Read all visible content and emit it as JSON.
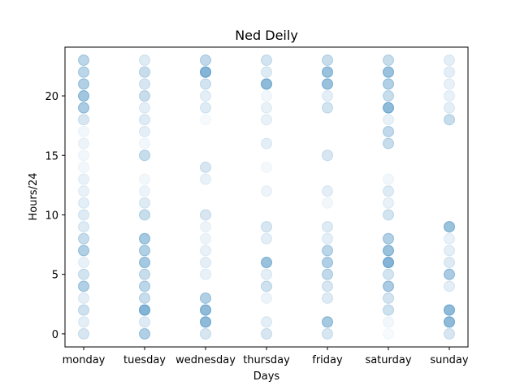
{
  "chart_data": {
    "type": "scatter",
    "title": "Ned Deily",
    "xlabel": "Days",
    "ylabel": "Hours/24",
    "categories": [
      "monday",
      "tuesday",
      "wednesday",
      "thursday",
      "friday",
      "saturday",
      "sunday"
    ],
    "yticks": [
      0,
      5,
      10,
      15,
      20
    ],
    "ylim": [
      -1.1,
      24.1
    ],
    "grid": false,
    "marker_color": "#1f77b4",
    "points": [
      {
        "day": "monday",
        "hour": 0,
        "alpha": 0.18
      },
      {
        "day": "monday",
        "hour": 1,
        "alpha": 0.12
      },
      {
        "day": "monday",
        "hour": 2,
        "alpha": 0.22
      },
      {
        "day": "monday",
        "hour": 3,
        "alpha": 0.12
      },
      {
        "day": "monday",
        "hour": 4,
        "alpha": 0.35
      },
      {
        "day": "monday",
        "hour": 5,
        "alpha": 0.2
      },
      {
        "day": "monday",
        "hour": 6,
        "alpha": 0.1
      },
      {
        "day": "monday",
        "hour": 7,
        "alpha": 0.35
      },
      {
        "day": "monday",
        "hour": 8,
        "alpha": 0.25
      },
      {
        "day": "monday",
        "hour": 9,
        "alpha": 0.15
      },
      {
        "day": "monday",
        "hour": 10,
        "alpha": 0.15
      },
      {
        "day": "monday",
        "hour": 11,
        "alpha": 0.12
      },
      {
        "day": "monday",
        "hour": 12,
        "alpha": 0.1
      },
      {
        "day": "monday",
        "hour": 13,
        "alpha": 0.1
      },
      {
        "day": "monday",
        "hour": 14,
        "alpha": 0.06
      },
      {
        "day": "monday",
        "hour": 15,
        "alpha": 0.06
      },
      {
        "day": "monday",
        "hour": 16,
        "alpha": 0.08
      },
      {
        "day": "monday",
        "hour": 17,
        "alpha": 0.06
      },
      {
        "day": "monday",
        "hour": 18,
        "alpha": 0.18
      },
      {
        "day": "monday",
        "hour": 19,
        "alpha": 0.38
      },
      {
        "day": "monday",
        "hour": 20,
        "alpha": 0.42
      },
      {
        "day": "monday",
        "hour": 21,
        "alpha": 0.35
      },
      {
        "day": "monday",
        "hour": 22,
        "alpha": 0.3
      },
      {
        "day": "monday",
        "hour": 23,
        "alpha": 0.3
      },
      {
        "day": "tuesday",
        "hour": 0,
        "alpha": 0.35
      },
      {
        "day": "tuesday",
        "hour": 1,
        "alpha": 0.15
      },
      {
        "day": "tuesday",
        "hour": 2,
        "alpha": 0.55
      },
      {
        "day": "tuesday",
        "hour": 3,
        "alpha": 0.25
      },
      {
        "day": "tuesday",
        "hour": 4,
        "alpha": 0.3
      },
      {
        "day": "tuesday",
        "hour": 5,
        "alpha": 0.25
      },
      {
        "day": "tuesday",
        "hour": 6,
        "alpha": 0.4
      },
      {
        "day": "tuesday",
        "hour": 7,
        "alpha": 0.35
      },
      {
        "day": "tuesday",
        "hour": 8,
        "alpha": 0.4
      },
      {
        "day": "tuesday",
        "hour": 10,
        "alpha": 0.25
      },
      {
        "day": "tuesday",
        "hour": 11,
        "alpha": 0.15
      },
      {
        "day": "tuesday",
        "hour": 12,
        "alpha": 0.08
      },
      {
        "day": "tuesday",
        "hour": 13,
        "alpha": 0.06
      },
      {
        "day": "tuesday",
        "hour": 15,
        "alpha": 0.25
      },
      {
        "day": "tuesday",
        "hour": 16,
        "alpha": 0.06
      },
      {
        "day": "tuesday",
        "hour": 17,
        "alpha": 0.12
      },
      {
        "day": "tuesday",
        "hour": 18,
        "alpha": 0.15
      },
      {
        "day": "tuesday",
        "hour": 19,
        "alpha": 0.12
      },
      {
        "day": "tuesday",
        "hour": 20,
        "alpha": 0.25
      },
      {
        "day": "tuesday",
        "hour": 21,
        "alpha": 0.18
      },
      {
        "day": "tuesday",
        "hour": 22,
        "alpha": 0.25
      },
      {
        "day": "tuesday",
        "hour": 23,
        "alpha": 0.15
      },
      {
        "day": "wednesday",
        "hour": 0,
        "alpha": 0.18
      },
      {
        "day": "wednesday",
        "hour": 1,
        "alpha": 0.5
      },
      {
        "day": "wednesday",
        "hour": 2,
        "alpha": 0.5
      },
      {
        "day": "wednesday",
        "hour": 3,
        "alpha": 0.35
      },
      {
        "day": "wednesday",
        "hour": 5,
        "alpha": 0.1
      },
      {
        "day": "wednesday",
        "hour": 6,
        "alpha": 0.12
      },
      {
        "day": "wednesday",
        "hour": 7,
        "alpha": 0.1
      },
      {
        "day": "wednesday",
        "hour": 8,
        "alpha": 0.08
      },
      {
        "day": "wednesday",
        "hour": 9,
        "alpha": 0.08
      },
      {
        "day": "wednesday",
        "hour": 10,
        "alpha": 0.18
      },
      {
        "day": "wednesday",
        "hour": 13,
        "alpha": 0.1
      },
      {
        "day": "wednesday",
        "hour": 14,
        "alpha": 0.18
      },
      {
        "day": "wednesday",
        "hour": 18,
        "alpha": 0.04
      },
      {
        "day": "wednesday",
        "hour": 19,
        "alpha": 0.15
      },
      {
        "day": "wednesday",
        "hour": 20,
        "alpha": 0.12
      },
      {
        "day": "wednesday",
        "hour": 21,
        "alpha": 0.2
      },
      {
        "day": "wednesday",
        "hour": 22,
        "alpha": 0.55
      },
      {
        "day": "wednesday",
        "hour": 23,
        "alpha": 0.28
      },
      {
        "day": "thursday",
        "hour": 0,
        "alpha": 0.18
      },
      {
        "day": "thursday",
        "hour": 1,
        "alpha": 0.12
      },
      {
        "day": "thursday",
        "hour": 3,
        "alpha": 0.08
      },
      {
        "day": "thursday",
        "hour": 4,
        "alpha": 0.22
      },
      {
        "day": "thursday",
        "hour": 5,
        "alpha": 0.12
      },
      {
        "day": "thursday",
        "hour": 6,
        "alpha": 0.45
      },
      {
        "day": "thursday",
        "hour": 8,
        "alpha": 0.12
      },
      {
        "day": "thursday",
        "hour": 9,
        "alpha": 0.18
      },
      {
        "day": "thursday",
        "hour": 12,
        "alpha": 0.08
      },
      {
        "day": "thursday",
        "hour": 14,
        "alpha": 0.05
      },
      {
        "day": "thursday",
        "hour": 16,
        "alpha": 0.12
      },
      {
        "day": "thursday",
        "hour": 18,
        "alpha": 0.1
      },
      {
        "day": "thursday",
        "hour": 19,
        "alpha": 0.1
      },
      {
        "day": "thursday",
        "hour": 20,
        "alpha": 0.06
      },
      {
        "day": "thursday",
        "hour": 21,
        "alpha": 0.5
      },
      {
        "day": "thursday",
        "hour": 22,
        "alpha": 0.15
      },
      {
        "day": "thursday",
        "hour": 23,
        "alpha": 0.2
      },
      {
        "day": "friday",
        "hour": 0,
        "alpha": 0.18
      },
      {
        "day": "friday",
        "hour": 1,
        "alpha": 0.4
      },
      {
        "day": "friday",
        "hour": 3,
        "alpha": 0.15
      },
      {
        "day": "friday",
        "hour": 4,
        "alpha": 0.18
      },
      {
        "day": "friday",
        "hour": 5,
        "alpha": 0.28
      },
      {
        "day": "friday",
        "hour": 6,
        "alpha": 0.35
      },
      {
        "day": "friday",
        "hour": 7,
        "alpha": 0.3
      },
      {
        "day": "friday",
        "hour": 8,
        "alpha": 0.12
      },
      {
        "day": "friday",
        "hour": 9,
        "alpha": 0.15
      },
      {
        "day": "friday",
        "hour": 11,
        "alpha": 0.06
      },
      {
        "day": "friday",
        "hour": 12,
        "alpha": 0.12
      },
      {
        "day": "friday",
        "hour": 15,
        "alpha": 0.18
      },
      {
        "day": "friday",
        "hour": 19,
        "alpha": 0.2
      },
      {
        "day": "friday",
        "hour": 20,
        "alpha": 0.12
      },
      {
        "day": "friday",
        "hour": 21,
        "alpha": 0.45
      },
      {
        "day": "friday",
        "hour": 22,
        "alpha": 0.45
      },
      {
        "day": "friday",
        "hour": 23,
        "alpha": 0.25
      },
      {
        "day": "saturday",
        "hour": 0,
        "alpha": 0.04
      },
      {
        "day": "saturday",
        "hour": 1,
        "alpha": 0.06
      },
      {
        "day": "saturday",
        "hour": 2,
        "alpha": 0.22
      },
      {
        "day": "saturday",
        "hour": 3,
        "alpha": 0.2
      },
      {
        "day": "saturday",
        "hour": 4,
        "alpha": 0.38
      },
      {
        "day": "saturday",
        "hour": 5,
        "alpha": 0.2
      },
      {
        "day": "saturday",
        "hour": 6,
        "alpha": 0.55
      },
      {
        "day": "saturday",
        "hour": 7,
        "alpha": 0.45
      },
      {
        "day": "saturday",
        "hour": 8,
        "alpha": 0.35
      },
      {
        "day": "saturday",
        "hour": 10,
        "alpha": 0.2
      },
      {
        "day": "saturday",
        "hour": 11,
        "alpha": 0.1
      },
      {
        "day": "saturday",
        "hour": 12,
        "alpha": 0.15
      },
      {
        "day": "saturday",
        "hour": 13,
        "alpha": 0.06
      },
      {
        "day": "saturday",
        "hour": 16,
        "alpha": 0.25
      },
      {
        "day": "saturday",
        "hour": 17,
        "alpha": 0.28
      },
      {
        "day": "saturday",
        "hour": 18,
        "alpha": 0.1
      },
      {
        "day": "saturday",
        "hour": 19,
        "alpha": 0.5
      },
      {
        "day": "saturday",
        "hour": 20,
        "alpha": 0.25
      },
      {
        "day": "saturday",
        "hour": 21,
        "alpha": 0.35
      },
      {
        "day": "saturday",
        "hour": 22,
        "alpha": 0.45
      },
      {
        "day": "saturday",
        "hour": 23,
        "alpha": 0.25
      },
      {
        "day": "sunday",
        "hour": 0,
        "alpha": 0.18
      },
      {
        "day": "sunday",
        "hour": 1,
        "alpha": 0.5
      },
      {
        "day": "sunday",
        "hour": 2,
        "alpha": 0.5
      },
      {
        "day": "sunday",
        "hour": 4,
        "alpha": 0.12
      },
      {
        "day": "sunday",
        "hour": 5,
        "alpha": 0.38
      },
      {
        "day": "sunday",
        "hour": 6,
        "alpha": 0.15
      },
      {
        "day": "sunday",
        "hour": 7,
        "alpha": 0.12
      },
      {
        "day": "sunday",
        "hour": 8,
        "alpha": 0.1
      },
      {
        "day": "sunday",
        "hour": 9,
        "alpha": 0.45
      },
      {
        "day": "sunday",
        "hour": 18,
        "alpha": 0.25
      },
      {
        "day": "sunday",
        "hour": 19,
        "alpha": 0.12
      },
      {
        "day": "sunday",
        "hour": 20,
        "alpha": 0.1
      },
      {
        "day": "sunday",
        "hour": 21,
        "alpha": 0.1
      },
      {
        "day": "sunday",
        "hour": 22,
        "alpha": 0.12
      },
      {
        "day": "sunday",
        "hour": 23,
        "alpha": 0.12
      }
    ]
  }
}
